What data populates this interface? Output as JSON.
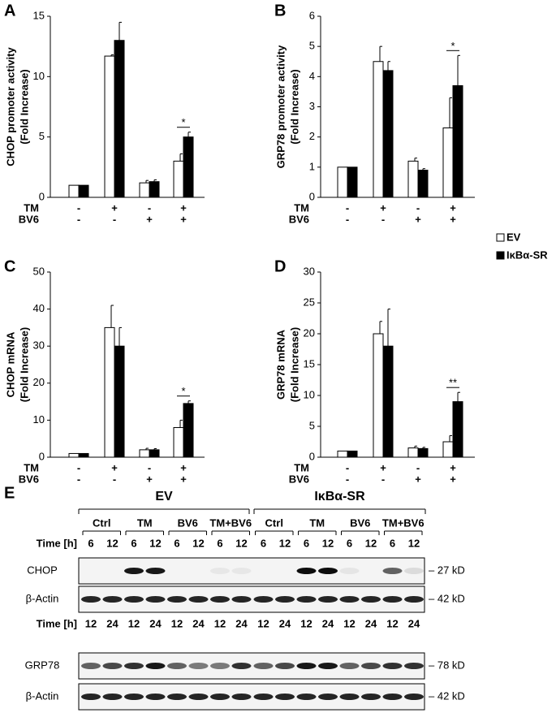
{
  "chart_data": [
    {
      "type": "bar",
      "label": "A",
      "ylabel": [
        "CHOP promoter activity",
        "(Fold Increase)"
      ],
      "ylim": [
        0,
        15
      ],
      "yticks": [
        0,
        5,
        10,
        15
      ],
      "condition_rows": [
        {
          "name": "TM",
          "signs": [
            "-",
            "+",
            "-",
            "+"
          ]
        },
        {
          "name": "BV6",
          "signs": [
            "-",
            "-",
            "+",
            "+"
          ]
        }
      ],
      "series": [
        {
          "values": [
            1,
            11.7,
            1.2,
            3.0
          ],
          "errors": [
            0,
            0.1,
            0.2,
            0.6
          ]
        },
        {
          "values": [
            1,
            13,
            1.3,
            5.0
          ],
          "errors": [
            0,
            1.5,
            0.15,
            0.4
          ]
        }
      ],
      "annotation": "*"
    },
    {
      "type": "bar",
      "label": "B",
      "ylabel": [
        "GRP78 promoter activity",
        "(Fold Increase)"
      ],
      "ylim": [
        0,
        6
      ],
      "yticks": [
        0,
        1,
        2,
        3,
        4,
        5,
        6
      ],
      "condition_rows": [
        {
          "name": "TM",
          "signs": [
            "-",
            "+",
            "-",
            "+"
          ]
        },
        {
          "name": "BV6",
          "signs": [
            "-",
            "-",
            "+",
            "+"
          ]
        }
      ],
      "series": [
        {
          "values": [
            1,
            4.5,
            1.2,
            2.3
          ],
          "errors": [
            0,
            0.5,
            0.1,
            1.0
          ]
        },
        {
          "values": [
            1,
            4.2,
            0.9,
            3.7
          ],
          "errors": [
            0,
            0.3,
            0.05,
            1.0
          ]
        }
      ],
      "annotation": "*"
    },
    {
      "type": "bar",
      "label": "C",
      "ylabel": [
        "CHOP mRNA",
        "(Fold Increase)"
      ],
      "ylim": [
        0,
        50
      ],
      "yticks": [
        0,
        10,
        20,
        30,
        40,
        50
      ],
      "condition_rows": [
        {
          "name": "TM",
          "signs": [
            "-",
            "+",
            "-",
            "+"
          ]
        },
        {
          "name": "BV6",
          "signs": [
            "-",
            "-",
            "+",
            "+"
          ]
        }
      ],
      "series": [
        {
          "values": [
            1,
            35,
            2,
            8
          ],
          "errors": [
            0,
            6,
            0.4,
            2
          ]
        },
        {
          "values": [
            1,
            30,
            2,
            14.5
          ],
          "errors": [
            0,
            5,
            0.3,
            0.7
          ]
        }
      ],
      "annotation": "*"
    },
    {
      "type": "bar",
      "label": "D",
      "ylabel": [
        "GRP78 mRNA",
        "(Fold Increase)"
      ],
      "ylim": [
        0,
        30
      ],
      "yticks": [
        0,
        5,
        10,
        15,
        20,
        25,
        30
      ],
      "condition_rows": [
        {
          "name": "TM",
          "signs": [
            "-",
            "+",
            "-",
            "+"
          ]
        },
        {
          "name": "BV6",
          "signs": [
            "-",
            "-",
            "+",
            "+"
          ]
        }
      ],
      "series": [
        {
          "values": [
            1,
            20,
            1.5,
            2.5
          ],
          "errors": [
            0,
            2,
            0.3,
            1
          ]
        },
        {
          "values": [
            1,
            18,
            1.4,
            9
          ],
          "errors": [
            0,
            6,
            0.2,
            1.5
          ]
        }
      ],
      "annotation": "**"
    }
  ],
  "legend": [
    {
      "name": "EV",
      "color": "#ffffff"
    },
    {
      "name": "IκBα-SR",
      "color": "#000000"
    }
  ],
  "blot": {
    "label": "E",
    "groups": [
      {
        "name": "EV",
        "conditions": [
          "Ctrl",
          "TM",
          "BV6",
          "TM+BV6"
        ]
      },
      {
        "name": "IκBα-SR",
        "conditions": [
          "Ctrl",
          "TM",
          "BV6",
          "TM+BV6"
        ]
      }
    ],
    "sections": [
      {
        "time_label": "Time [h]",
        "times": [
          6,
          12,
          6,
          12,
          6,
          12,
          6,
          12,
          6,
          12,
          6,
          12,
          6,
          12,
          6,
          12
        ],
        "rows": [
          {
            "name": "CHOP",
            "size": "– 27 kD"
          },
          {
            "name": "β-Actin",
            "size": "– 42 kD"
          }
        ]
      },
      {
        "time_label": "Time [h]",
        "times": [
          12,
          24,
          12,
          24,
          12,
          24,
          12,
          24,
          12,
          24,
          12,
          24,
          12,
          24,
          12,
          24
        ],
        "rows": [
          {
            "name": "GRP78",
            "size": "– 78 kD"
          },
          {
            "name": "β-Actin",
            "size": "– 42 kD"
          }
        ]
      }
    ]
  }
}
